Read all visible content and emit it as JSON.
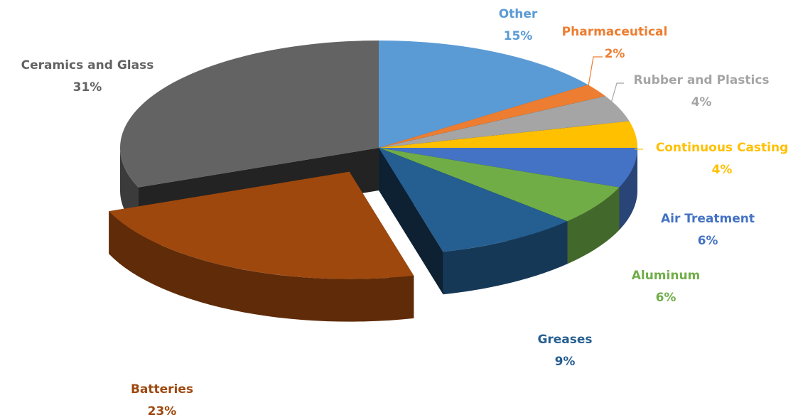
{
  "chart_data": {
    "type": "pie",
    "categories": [
      "Other",
      "Pharmaceutical",
      "Rubber and Plastics",
      "Continuous Casting",
      "Air Treatment",
      "Aluminum",
      "Greases",
      "Batteries",
      "Ceramics and Glass"
    ],
    "values": [
      15,
      2,
      4,
      4,
      6,
      6,
      9,
      23,
      31
    ],
    "value_labels": [
      "15%",
      "2%",
      "4%",
      "4%",
      "6%",
      "6%",
      "9%",
      "23%",
      "31%"
    ],
    "colors": [
      "#5b9bd5",
      "#ed7d31",
      "#a5a5a5",
      "#ffc000",
      "#4472c4",
      "#70ad47",
      "#255e91",
      "#9e480e",
      "#636363"
    ],
    "explode": [
      0,
      0,
      0,
      0,
      0,
      0,
      0,
      0.25,
      0
    ]
  }
}
